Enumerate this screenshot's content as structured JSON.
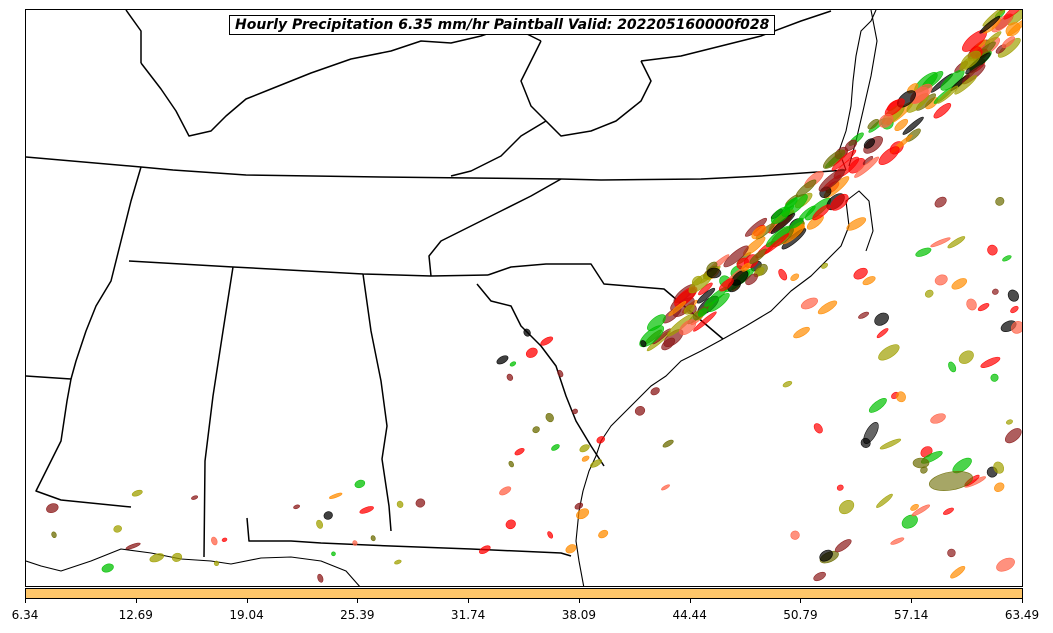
{
  "title": "Hourly Precipitation 6.35 mm/hr Paintball Valid: 202205160000f028",
  "colorbar": {
    "color": "#fec66a",
    "tick_labels": [
      "6.34",
      "12.69",
      "19.04",
      "25.39",
      "31.74",
      "38.09",
      "44.44",
      "50.79",
      "57.14",
      "63.49"
    ]
  },
  "member_colors": [
    "#ff0000",
    "#ff8c00",
    "#00c000",
    "#8b1a1a",
    "#6b6b00",
    "#000000",
    "#a0a000",
    "#ff6347"
  ],
  "chart_data": {
    "type": "map",
    "title": "Hourly Precipitation 6.35 mm/hr Paintball Valid: 202205160000f028",
    "colorbar_ticks": [
      6.34,
      12.69,
      19.04,
      25.39,
      31.74,
      38.09,
      44.44,
      50.79,
      57.14,
      63.49
    ],
    "colorbar_range": [
      6.34,
      63.49
    ],
    "region": "Southeastern United States"
  }
}
